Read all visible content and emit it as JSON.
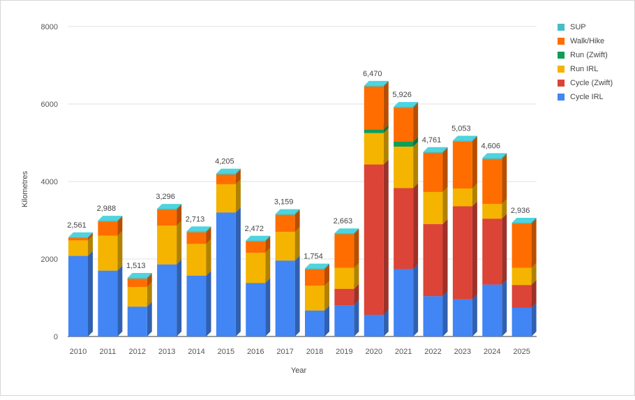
{
  "chart_data": {
    "type": "bar",
    "stacked": true,
    "three_d": true,
    "xlabel": "Year",
    "ylabel": "Kilometres",
    "ylim": [
      0,
      8000
    ],
    "yticks": [
      "0",
      "2000",
      "4000",
      "6000",
      "8000"
    ],
    "grid": true,
    "legend_position": "right",
    "categories": [
      "2010",
      "2011",
      "2012",
      "2013",
      "2014",
      "2015",
      "2016",
      "2017",
      "2018",
      "2019",
      "2020",
      "2021",
      "2022",
      "2023",
      "2024",
      "2025"
    ],
    "totals_labels": [
      "2,561",
      "2,988",
      "1,513",
      "3,296",
      "2,713",
      "4,205",
      "2,472",
      "3,159",
      "1,754",
      "2,663",
      "6,470",
      "5,926",
      "4,761",
      "5,053",
      "4,606",
      "2,936"
    ],
    "totals": [
      2561,
      2988,
      1513,
      3296,
      2713,
      4205,
      2472,
      3159,
      1754,
      2663,
      6470,
      5926,
      4761,
      5053,
      4606,
      2936
    ],
    "series": [
      {
        "name": "Cycle IRL",
        "color": "#4285f4",
        "values": [
          2080,
          1700,
          770,
          1860,
          1570,
          3200,
          1380,
          1960,
          670,
          810,
          560,
          1740,
          1040,
          960,
          1340,
          740
        ]
      },
      {
        "name": "Cycle (Zwift)",
        "color": "#db4437",
        "values": [
          0,
          0,
          0,
          0,
          0,
          0,
          0,
          0,
          0,
          420,
          3880,
          2090,
          1860,
          2400,
          1700,
          590
        ]
      },
      {
        "name": "Run IRL",
        "color": "#f4b400",
        "values": [
          400,
          900,
          510,
          1000,
          820,
          730,
          780,
          740,
          640,
          540,
          810,
          1070,
          830,
          460,
          380,
          440
        ]
      },
      {
        "name": "Run (Zwift)",
        "color": "#0f9d58",
        "values": [
          0,
          0,
          0,
          0,
          0,
          0,
          0,
          0,
          0,
          0,
          90,
          130,
          0,
          0,
          0,
          0
        ]
      },
      {
        "name": "Walk/Hike",
        "color": "#ff6d01",
        "values": [
          60,
          370,
          210,
          410,
          300,
          250,
          290,
          440,
          420,
          870,
          1110,
          870,
          1010,
          1210,
          1160,
          1140
        ]
      },
      {
        "name": "SUP",
        "color": "#46bdc6",
        "values": [
          21,
          18,
          23,
          26,
          23,
          25,
          22,
          19,
          24,
          23,
          20,
          26,
          21,
          23,
          26,
          26
        ]
      }
    ]
  }
}
